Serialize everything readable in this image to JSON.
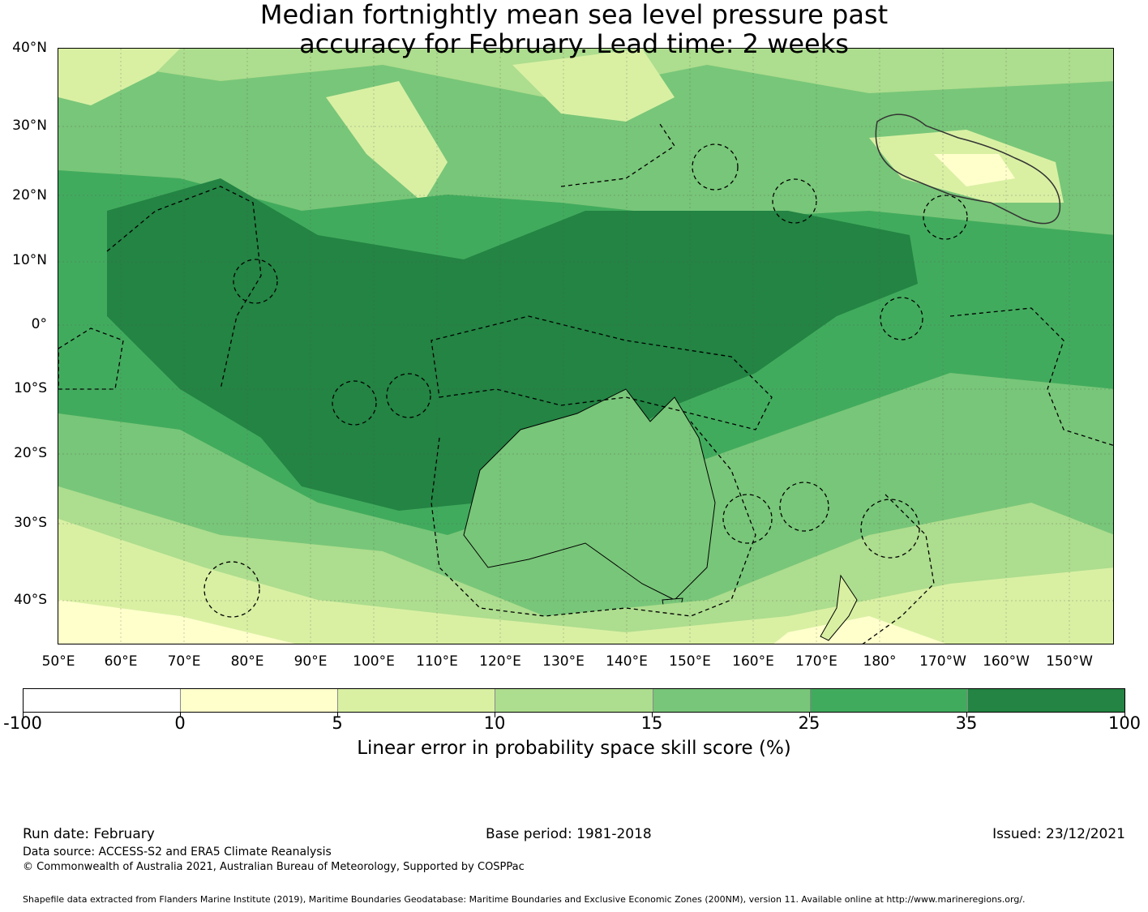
{
  "title": {
    "line1": "Median fortnightly mean sea level pressure past",
    "line2": "accuracy for February. Lead time: 2 weeks"
  },
  "map": {
    "lat_labels": [
      "40°N",
      "30°N",
      "20°N",
      "10°N",
      "0°",
      "10°S",
      "20°S",
      "30°S",
      "40°S"
    ],
    "lon_labels": [
      "50°E",
      "60°E",
      "70°E",
      "80°E",
      "90°E",
      "100°E",
      "110°E",
      "120°E",
      "130°E",
      "140°E",
      "150°E",
      "160°E",
      "170°E",
      "180°",
      "170°W",
      "160°W",
      "150°W"
    ]
  },
  "colorbar": {
    "ticks": [
      "-100",
      "0",
      "5",
      "10",
      "15",
      "25",
      "35",
      "100"
    ],
    "colors": [
      "#ffffff",
      "#ffffcc",
      "#d9f0a3",
      "#addd8e",
      "#78c679",
      "#41ab5d",
      "#238443"
    ],
    "label": "Linear error in probability space skill score (%)"
  },
  "footer": {
    "run_date": "Run date: February",
    "base_period": "Base period: 1981-2018",
    "issued": "Issued: 23/12/2021",
    "data_source": "Data source: ACCESS-S2 and ERA5 Climate Reanalysis",
    "copyright": "© Commonwealth of Australia 2021, Australian Bureau of Meteorology, Supported by COSPPac",
    "shapefile": "Shapefile data extracted from Flanders Marine Institute (2019), Maritime Boundaries Geodatabase: Maritime Boundaries and Exclusive Economic Zones (200NM), version 11. Available online at http://www.marineregions.org/."
  }
}
